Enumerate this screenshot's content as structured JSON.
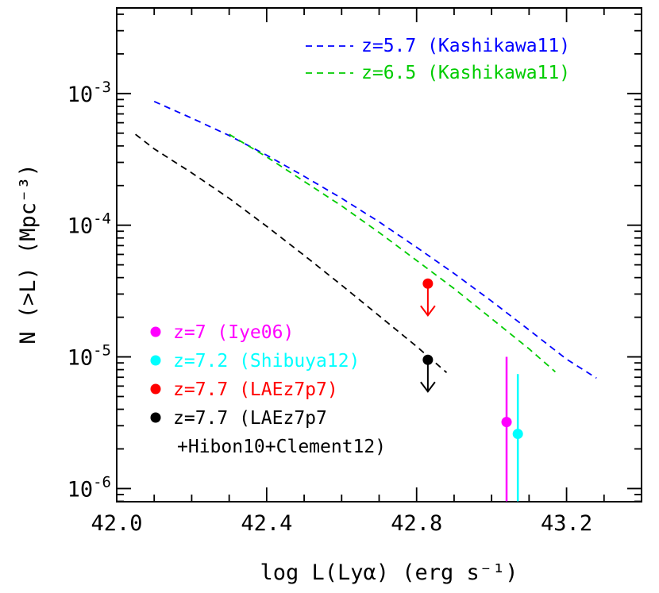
{
  "chart_data": {
    "type": "line",
    "title": "",
    "xlabel": "log L(Lyα) (erg s⁻¹)",
    "ylabel": "N (>L) (Mpc⁻³)",
    "xlim": [
      42.0,
      43.4
    ],
    "ylim_log10": [
      -6.1,
      -2.35
    ],
    "yscale": "log",
    "x_ticks": [
      {
        "value": 42.0,
        "label": "42.0"
      },
      {
        "value": 42.4,
        "label": "42.4"
      },
      {
        "value": 42.8,
        "label": "42.8"
      },
      {
        "value": 43.2,
        "label": "43.2"
      }
    ],
    "y_ticks": [
      {
        "exp": -3,
        "base": "10",
        "sup": "-3"
      },
      {
        "exp": -4,
        "base": "10",
        "sup": "-4"
      },
      {
        "exp": -5,
        "base": "10",
        "sup": "-5"
      },
      {
        "exp": -6,
        "base": "10",
        "sup": "-6"
      }
    ],
    "series": [
      {
        "name": "z=5.7 (Kashikawa11)",
        "color": "#0000ff",
        "style": "dashed",
        "x": [
          42.1,
          42.2,
          42.3,
          42.4,
          42.5,
          42.6,
          42.7,
          42.8,
          42.9,
          43.0,
          43.1,
          43.2,
          43.28
        ],
        "y": [
          0.00087,
          0.00065,
          0.00048,
          0.00034,
          0.000235,
          0.00016,
          0.000106,
          6.8e-05,
          4.3e-05,
          2.65e-05,
          1.6e-05,
          9.6e-06,
          6.9e-06
        ]
      },
      {
        "name": "z=6.5 (Kashikawa11)",
        "color": "#00cc00",
        "style": "dashed",
        "x": [
          42.3,
          42.4,
          42.5,
          42.6,
          42.7,
          42.8,
          42.9,
          43.0,
          43.1,
          43.17
        ],
        "y": [
          0.00049,
          0.00033,
          0.000215,
          0.00014,
          8.8e-05,
          5.4e-05,
          3.3e-05,
          1.95e-05,
          1.15e-05,
          7.7e-06
        ]
      },
      {
        "name": "z=7.7 (LAEz7p7 +Hibon10+Clement12)",
        "color": "#000000",
        "style": "dashed",
        "x": [
          42.05,
          42.1,
          42.2,
          42.3,
          42.4,
          42.5,
          42.6,
          42.7,
          42.8,
          42.88
        ],
        "y": [
          0.00049,
          0.00038,
          0.00025,
          0.00016,
          9.8e-05,
          5.9e-05,
          3.5e-05,
          2.05e-05,
          1.2e-05,
          7.6e-06
        ]
      }
    ],
    "points": [
      {
        "name": "z=7 (Iye06)",
        "color": "#ff00ff",
        "x": 43.04,
        "y": 3.2e-06,
        "yerr_high": 1e-05,
        "yerr_low": 8e-07
      },
      {
        "name": "z=7.2 (Shibuya12)",
        "color": "#00ffff",
        "x": 43.07,
        "y": 2.6e-06,
        "yerr_high": 7.4e-06,
        "yerr_low": 8e-07
      },
      {
        "name": "z=7.7 (LAEz7p7)",
        "color": "#ff0000",
        "x": 42.83,
        "y": 3.6e-05,
        "upper_limit": true
      },
      {
        "name": "z=7.7 (LAEz7p7 +Hibon10+Clement12)",
        "color": "#000000",
        "x": 42.83,
        "y": 9.5e-06,
        "upper_limit": true
      }
    ],
    "legend_lines": [
      {
        "text": "z=5.7 (Kashikawa11)",
        "color": "#0000ff"
      },
      {
        "text": "z=6.5 (Kashikawa11)",
        "color": "#00cc00"
      }
    ],
    "legend_points": [
      {
        "text": "z=7 (Iye06)",
        "color": "#ff00ff",
        "marker": true
      },
      {
        "text": "z=7.2 (Shibuya12)",
        "color": "#00ffff",
        "marker": true
      },
      {
        "text": "z=7.7 (LAEz7p7)",
        "color": "#ff0000",
        "marker": true
      },
      {
        "text": "z=7.7 (LAEz7p7",
        "color": "#000000",
        "marker": true
      },
      {
        "text": "+Hibon10+Clement12)",
        "color": "#000000",
        "marker": false
      }
    ],
    "grid": false,
    "legend_placement": "top-right and bottom-left"
  }
}
